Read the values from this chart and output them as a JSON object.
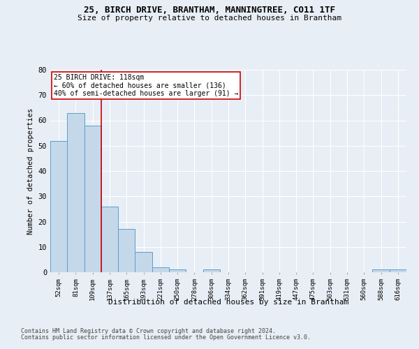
{
  "title": "25, BIRCH DRIVE, BRANTHAM, MANNINGTREE, CO11 1TF",
  "subtitle": "Size of property relative to detached houses in Brantham",
  "xlabel": "Distribution of detached houses by size in Brantham",
  "ylabel": "Number of detached properties",
  "categories": [
    "52sqm",
    "81sqm",
    "109sqm",
    "137sqm",
    "165sqm",
    "193sqm",
    "221sqm",
    "250sqm",
    "278sqm",
    "306sqm",
    "334sqm",
    "362sqm",
    "391sqm",
    "419sqm",
    "447sqm",
    "475sqm",
    "503sqm",
    "531sqm",
    "560sqm",
    "588sqm",
    "616sqm"
  ],
  "values": [
    52,
    63,
    58,
    26,
    17,
    8,
    2,
    1,
    0,
    1,
    0,
    0,
    0,
    0,
    0,
    0,
    0,
    0,
    0,
    1,
    1
  ],
  "bar_color": "#c5d8ea",
  "bar_edge_color": "#5b9ec9",
  "vline_color": "#cc0000",
  "annotation_line1": "25 BIRCH DRIVE: 118sqm",
  "annotation_line2": "← 60% of detached houses are smaller (136)",
  "annotation_line3": "40% of semi-detached houses are larger (91) →",
  "annotation_box_color": "#ffffff",
  "annotation_box_edge_color": "#cc0000",
  "ylim": [
    0,
    80
  ],
  "yticks": [
    0,
    10,
    20,
    30,
    40,
    50,
    60,
    70,
    80
  ],
  "footer1": "Contains HM Land Registry data © Crown copyright and database right 2024.",
  "footer2": "Contains public sector information licensed under the Open Government Licence v3.0.",
  "background_color": "#e8eef5",
  "grid_color": "#ffffff",
  "figsize": [
    6.0,
    5.0
  ],
  "dpi": 100
}
